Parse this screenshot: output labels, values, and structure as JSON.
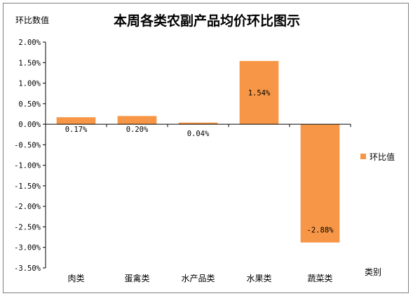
{
  "chart_data": {
    "type": "bar",
    "title": "本周各类农副产品均价环比图示",
    "ylabel": "环比数值",
    "xlabel": "类别",
    "categories": [
      "肉类",
      "蛋禽类",
      "水产品类",
      "水果类",
      "蔬菜类"
    ],
    "series": [
      {
        "name": "环比值",
        "values": [
          0.17,
          0.2,
          0.04,
          1.54,
          -2.88
        ],
        "color": "#f79646"
      }
    ],
    "data_labels": [
      "0.17%",
      "0.20%",
      "0.04%",
      "1.54%",
      "-2.88%"
    ],
    "ylim": [
      -3.5,
      2.0
    ],
    "yticks": [
      2.0,
      1.5,
      1.0,
      0.5,
      0.0,
      -0.5,
      -1.0,
      -1.5,
      -2.0,
      -2.5,
      -3.0,
      -3.5
    ],
    "ytick_labels": [
      "2.00%",
      "1.50%",
      "1.00%",
      "0.50%",
      "0.00%",
      "-0.50%",
      "-1.00%",
      "-1.50%",
      "-2.00%",
      "-2.50%",
      "-3.00%",
      "-3.50%"
    ],
    "grid": false,
    "legend_position": "right"
  }
}
